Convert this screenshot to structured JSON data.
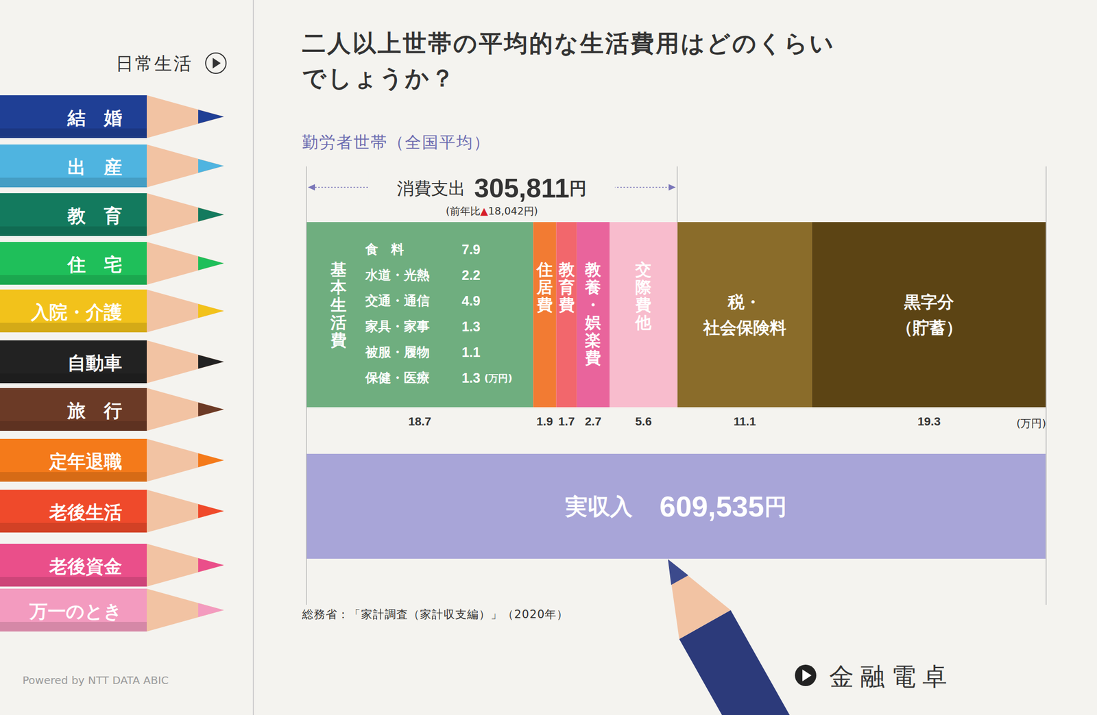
{
  "chart_data": {
    "type": "bar",
    "orientation": "horizontal",
    "stacked": true,
    "data_labels": true,
    "tick_labels": false,
    "grid": true,
    "title": [
      "二人以上世帯の平均的な生活費用はどのくらい",
      "でしょうか？"
    ],
    "subtitle": "勤労者世帯（全国平均）",
    "categories": [
      null
    ],
    "xlim": [
      0,
      61
    ],
    "xticks": [
      0,
      61
    ],
    "unit_label": "(万円)",
    "series": [
      {
        "name": "基本生活費",
        "color": "#6fae7f",
        "values": [
          18.7
        ]
      },
      {
        "name": "住居費",
        "color": "#f27b33",
        "values": [
          1.9
        ]
      },
      {
        "name": "教育費",
        "color": "#f2676c",
        "values": [
          1.7
        ]
      },
      {
        "name": "教養・娯楽費",
        "color": "#e9649c",
        "values": [
          2.7
        ]
      },
      {
        "name": "交際費他",
        "color": "#f8bccd",
        "values": [
          5.6
        ]
      },
      {
        "name": "税・社会保険料",
        "color": "#8a6c2a",
        "values": [
          11.1
        ]
      },
      {
        "name": "黒字分（貯蓄）",
        "color": "#5c4414",
        "values": [
          19.3
        ]
      }
    ],
    "breakdown": {
      "series": "基本生活費",
      "unit": "(万円)",
      "items": [
        {
          "name": "食　料",
          "value": 7.9
        },
        {
          "name": "水道・光熱",
          "value": 2.2
        },
        {
          "name": "交通・通信",
          "value": 4.9
        },
        {
          "name": "家具・家事",
          "value": 1.3
        },
        {
          "name": "被服・履物",
          "value": 1.1
        },
        {
          "name": "保健・医療",
          "value": 1.3
        }
      ]
    },
    "consumption": {
      "label": "消費支出",
      "value": 30.5811,
      "value_label": "305,811円",
      "note": "(前年比▲18,042円)",
      "series": [
        "基本生活費",
        "住居費",
        "教育費",
        "教養・娯楽費",
        "交際費他"
      ]
    },
    "income": {
      "label": "実収入",
      "value": 60.9535,
      "value_label": "609,535円",
      "color": "#a8a5d8"
    },
    "source": "総務省：「家計調査（家計収支編）」（2020年）"
  },
  "sidebar": {
    "header": "日常生活",
    "items": [
      {
        "label": "結　婚",
        "color": "#1f3f95"
      },
      {
        "label": "出　産",
        "color": "#4fb4e0"
      },
      {
        "label": "教　育",
        "color": "#137a5e"
      },
      {
        "label": "住　宅",
        "color": "#1fbf5a"
      },
      {
        "label": "入院・介護",
        "color": "#f2c21b"
      },
      {
        "label": "自動車",
        "color": "#222222"
      },
      {
        "label": "旅　行",
        "color": "#6b3a26"
      },
      {
        "label": "定年退職",
        "color": "#f47a1a"
      },
      {
        "label": "老後生活",
        "color": "#ef4a2b"
      },
      {
        "label": "老後資金",
        "color": "#ea4f8a"
      },
      {
        "label": "万一のとき",
        "color": "#f39bbf"
      }
    ]
  },
  "brand": "金融電卓",
  "powered_by": "Powered by NTT DATA ABIC"
}
